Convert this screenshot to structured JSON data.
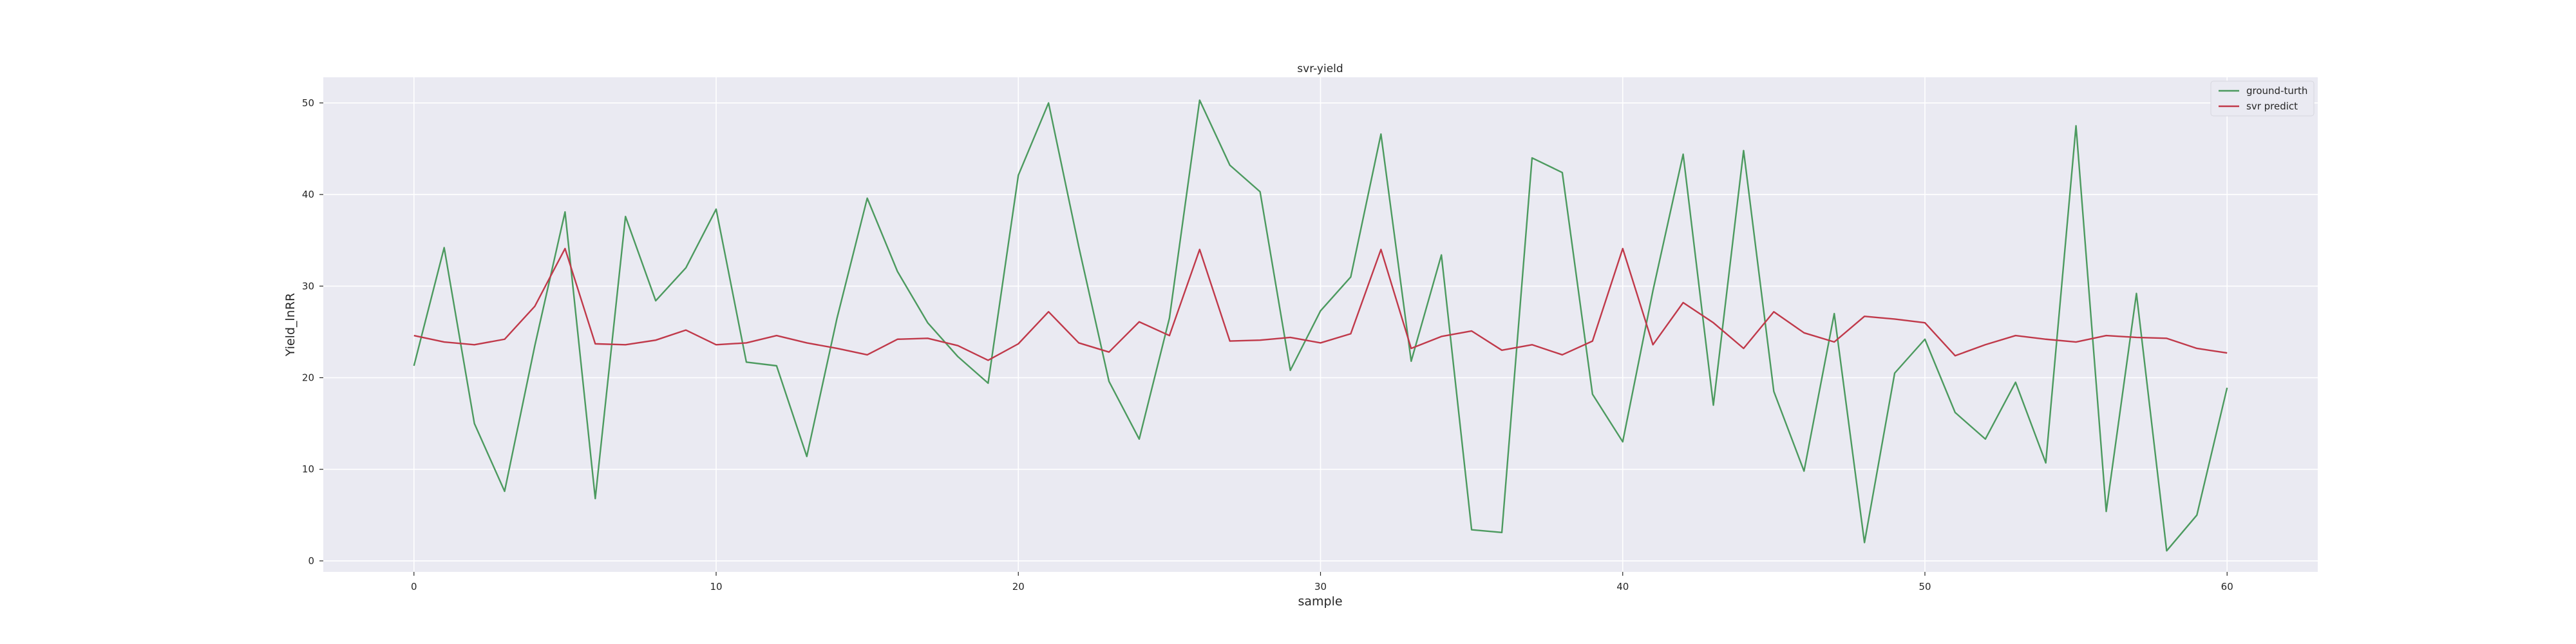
{
  "chart_data": {
    "type": "line",
    "title": "svr-yield",
    "xlabel": "sample",
    "ylabel": "Yield_lnRR",
    "xlim": [
      -3,
      63
    ],
    "ylim": [
      -1.2,
      52.8
    ],
    "xticks": [
      0,
      10,
      20,
      30,
      40,
      50,
      60
    ],
    "yticks": [
      0,
      10,
      20,
      30,
      40,
      50
    ],
    "grid": true,
    "legend_position": "top-right",
    "background_color": "#EAEAF2",
    "grid_color": "#FFFFFF",
    "x": [
      0,
      1,
      2,
      3,
      4,
      5,
      6,
      7,
      8,
      9,
      10,
      11,
      12,
      13,
      14,
      15,
      16,
      17,
      18,
      19,
      20,
      21,
      22,
      23,
      24,
      25,
      26,
      27,
      28,
      29,
      30,
      31,
      32,
      33,
      34,
      35,
      36,
      37,
      38,
      39,
      40,
      41,
      42,
      43,
      44,
      45,
      46,
      47,
      48,
      49,
      50,
      51,
      52,
      53,
      54,
      55,
      56,
      57,
      58,
      59,
      60
    ],
    "series": [
      {
        "name": "ground-turth",
        "color": "#4C9A5F",
        "values": [
          21.3,
          34.2,
          15.0,
          7.6,
          23.5,
          38.1,
          6.8,
          37.6,
          28.4,
          32.0,
          38.4,
          21.7,
          21.3,
          11.4,
          26.5,
          39.6,
          31.6,
          26.0,
          22.3,
          19.4,
          42.1,
          50.0,
          34.3,
          19.6,
          13.3,
          26.5,
          50.3,
          43.2,
          40.3,
          20.8,
          27.3,
          31.0,
          46.6,
          21.8,
          33.4,
          3.4,
          3.1,
          44.0,
          42.4,
          18.2,
          13.0,
          29.5,
          44.4,
          17.0,
          44.8,
          18.5,
          9.8,
          27.0,
          2.0,
          20.5,
          24.2,
          16.2,
          13.3,
          19.5,
          10.7,
          47.5,
          5.4,
          29.2,
          1.1,
          5.0,
          18.9
        ]
      },
      {
        "name": "svr predict",
        "color": "#C0394A",
        "values": [
          24.6,
          23.9,
          23.6,
          24.2,
          27.8,
          34.1,
          23.7,
          23.6,
          24.1,
          25.2,
          23.6,
          23.8,
          24.6,
          23.8,
          23.2,
          22.5,
          24.2,
          24.3,
          23.5,
          21.9,
          23.7,
          27.2,
          23.8,
          22.8,
          26.1,
          24.6,
          34.0,
          24.0,
          24.1,
          24.4,
          23.8,
          24.8,
          34.0,
          23.2,
          24.5,
          25.1,
          23.0,
          23.6,
          22.5,
          24.0,
          34.1,
          23.6,
          28.2,
          26.0,
          23.2,
          27.2,
          24.9,
          23.9,
          26.7,
          26.4,
          26.0,
          22.4,
          23.6,
          24.6,
          24.2,
          23.9,
          24.6,
          24.4,
          24.3,
          23.2,
          22.7
        ]
      }
    ]
  }
}
